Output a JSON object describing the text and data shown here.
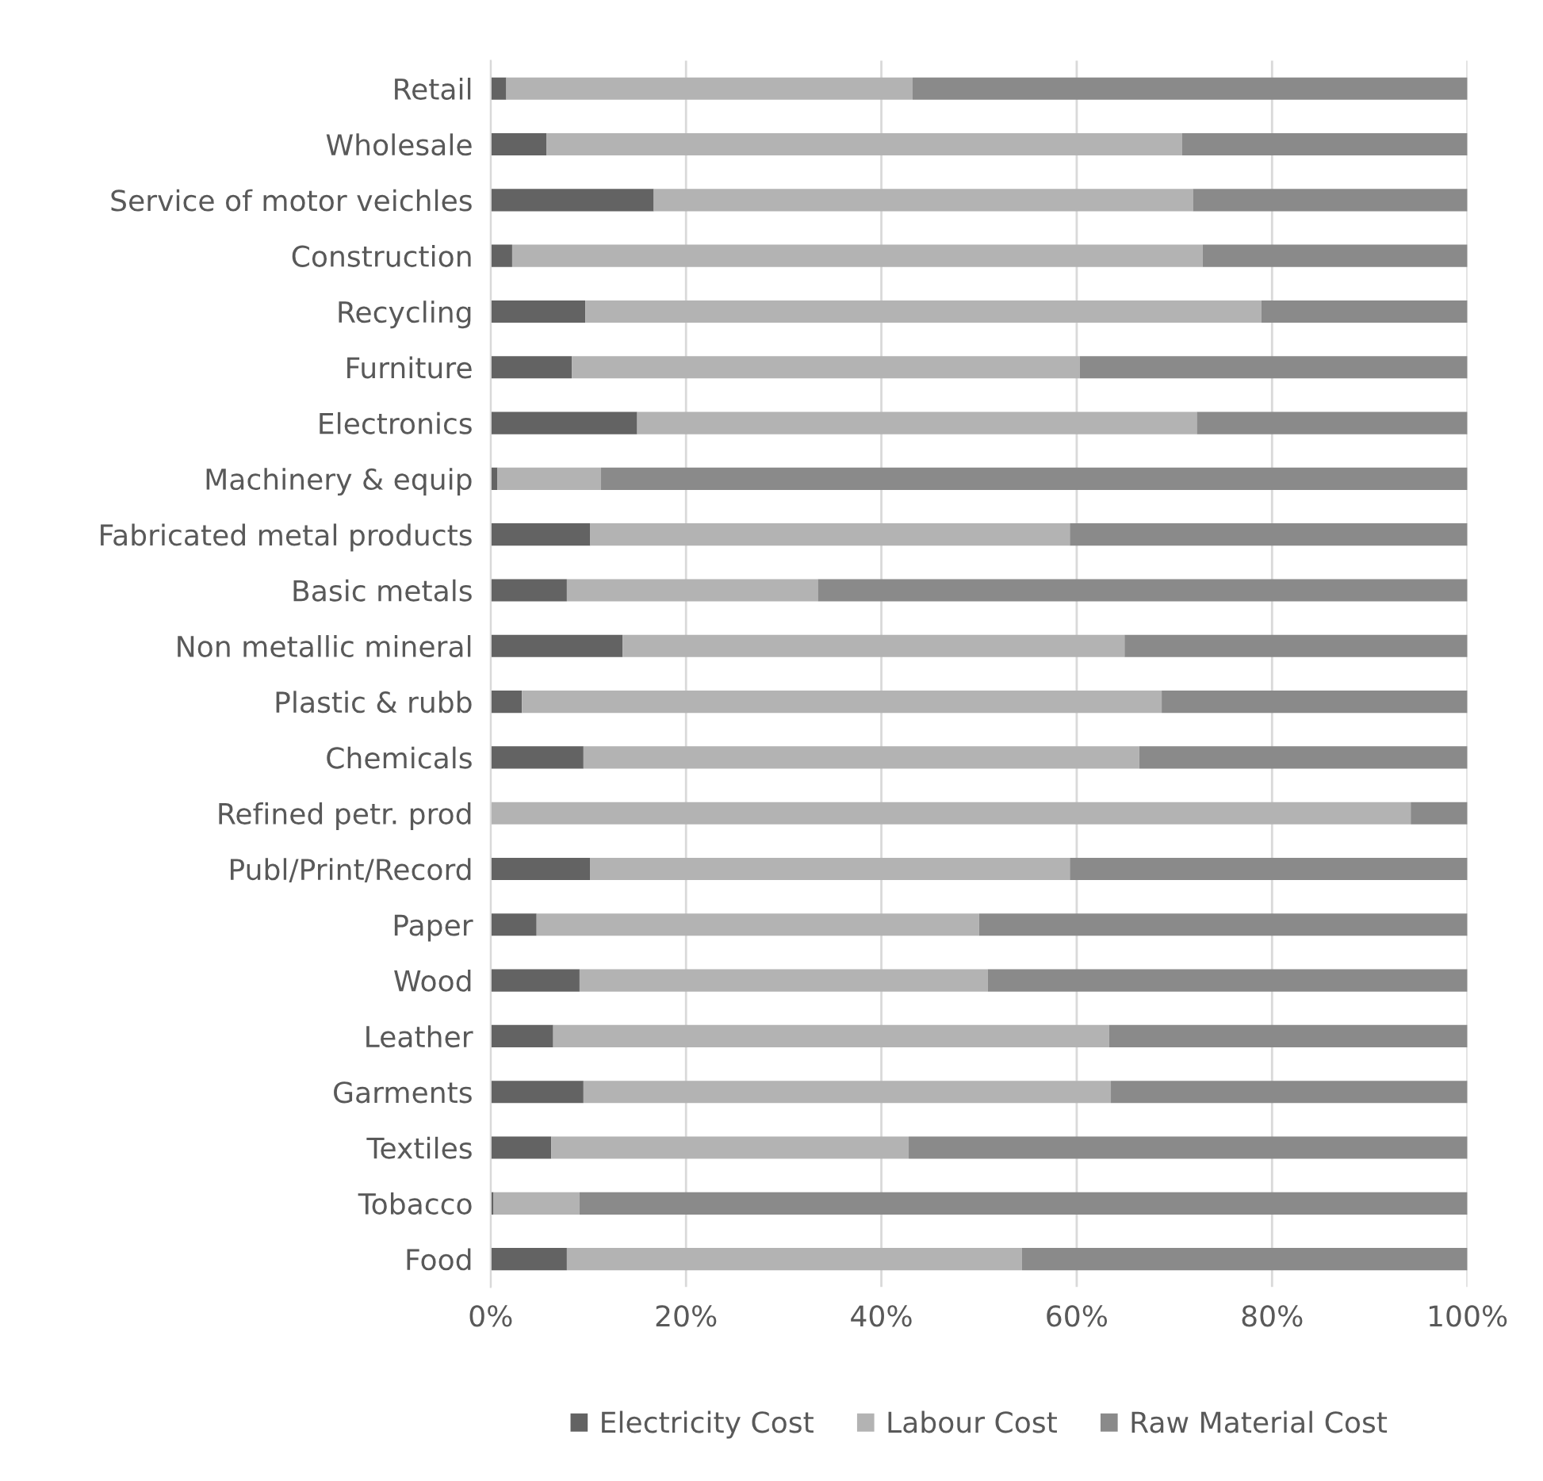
{
  "chart_data": {
    "type": "bar",
    "orientation": "horizontal",
    "stacked": true,
    "categories": [
      "Retail",
      "Wholesale",
      "Service of motor veichles",
      "Construction",
      "Recycling",
      "Furniture",
      "Electronics",
      "Machinery & equip",
      "Fabricated metal products",
      "Basic metals",
      "Non metallic mineral",
      "Plastic & rubb",
      "Chemicals",
      "Refined petr. prod",
      "Publ/Print/Record",
      "Paper",
      "Wood",
      "Leather",
      "Garments",
      "Textiles",
      "Tobacco",
      "Food"
    ],
    "series": [
      {
        "name": "Electricity Cost",
        "color": "#636363",
        "values": [
          1.6,
          5.7,
          16.7,
          2.2,
          9.7,
          8.3,
          15.0,
          0.7,
          10.2,
          7.8,
          13.5,
          3.2,
          9.5,
          0,
          10.2,
          4.7,
          9.1,
          6.4,
          9.5,
          6.2,
          0.3,
          7.8
        ]
      },
      {
        "name": "Labour Cost",
        "color": "#b3b3b3",
        "values": [
          41.6,
          65.1,
          55.2,
          70.7,
          69.2,
          52.0,
          57.3,
          10.6,
          49.1,
          25.7,
          51.4,
          65.5,
          56.9,
          94.2,
          49.1,
          45.3,
          41.8,
          56.9,
          54.0,
          36.6,
          8.8,
          46.6
        ]
      },
      {
        "name": "Raw Material Cost",
        "color": "#8a8a8a",
        "values": [
          56.8,
          29.2,
          28.1,
          27.1,
          21.1,
          39.7,
          27.7,
          88.7,
          40.7,
          66.5,
          35.1,
          31.3,
          33.6,
          5.8,
          40.7,
          50.0,
          49.1,
          36.7,
          36.5,
          57.2,
          90.9,
          45.6
        ]
      }
    ],
    "xlim": [
      0,
      100
    ],
    "xticks": [
      {
        "value": 0,
        "label": "0%"
      },
      {
        "value": 20,
        "label": "20%"
      },
      {
        "value": 40,
        "label": "40%"
      },
      {
        "value": 60,
        "label": "60%"
      },
      {
        "value": 80,
        "label": "80%"
      },
      {
        "value": 100,
        "label": "100%"
      }
    ],
    "grid": "x",
    "legend": "bottom"
  }
}
